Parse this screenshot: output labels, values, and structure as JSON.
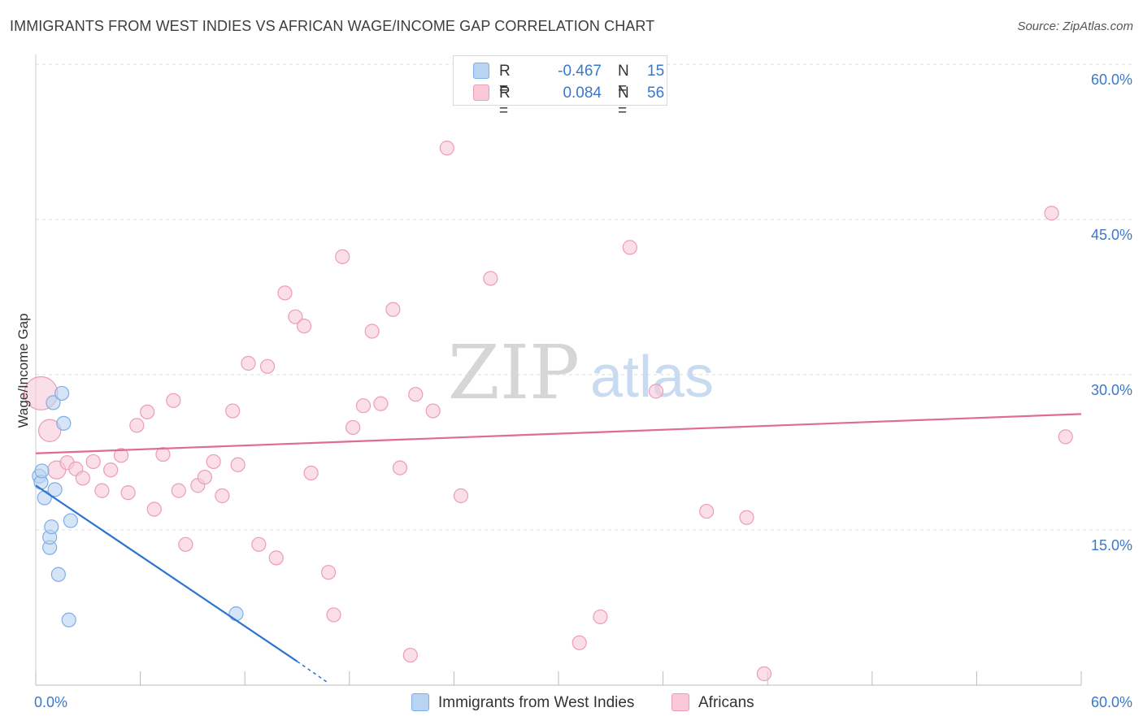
{
  "title": "IMMIGRANTS FROM WEST INDIES VS AFRICAN WAGE/INCOME GAP CORRELATION CHART",
  "source": "Source: ZipAtlas.com",
  "watermark": {
    "zip": "ZIP",
    "atlas": "atlas"
  },
  "legend": {
    "series1": {
      "r_label": "R =",
      "r_value": "-0.467",
      "n_label": "N =",
      "n_value": "15"
    },
    "series2": {
      "r_label": "R =",
      "r_value": "0.084",
      "n_label": "N =",
      "n_value": "56"
    }
  },
  "colors": {
    "blue_fill": "#b9d3f2",
    "blue_stroke": "#7eaee6",
    "blue_line": "#2f73d0",
    "pink_fill": "#f9c9d8",
    "pink_stroke": "#ee9bb6",
    "pink_line": "#e06b95",
    "grid": "#dddddd",
    "axis_text": "#3a78c9"
  },
  "chart_data": {
    "type": "scatter",
    "title": "IMMIGRANTS FROM WEST INDIES VS AFRICAN WAGE/INCOME GAP CORRELATION CHART",
    "xlabel": "",
    "ylabel": "Wage/Income Gap",
    "xlim": [
      0,
      60
    ],
    "ylim": [
      0,
      60
    ],
    "x_tick_labels": [
      "0.0%",
      "60.0%"
    ],
    "y_tick_values": [
      15,
      30,
      45,
      60
    ],
    "y_tick_labels": [
      "15.0%",
      "30.0%",
      "45.0%",
      "60.0%"
    ],
    "series": [
      {
        "name": "Immigrants from West Indies",
        "color": "#b9d3f2",
        "points": [
          [
            0.2,
            20.2,
            1
          ],
          [
            0.3,
            19.6,
            1
          ],
          [
            0.35,
            20.7,
            1
          ],
          [
            0.5,
            18.1,
            1
          ],
          [
            0.8,
            13.3,
            1
          ],
          [
            0.8,
            14.3,
            1
          ],
          [
            0.9,
            15.3,
            1
          ],
          [
            1.0,
            27.3,
            1
          ],
          [
            1.1,
            18.9,
            1
          ],
          [
            1.3,
            10.7,
            1
          ],
          [
            1.5,
            28.2,
            1
          ],
          [
            1.6,
            25.3,
            1
          ],
          [
            1.9,
            6.3,
            1
          ],
          [
            2.0,
            15.9,
            1
          ],
          [
            11.5,
            6.9,
            1
          ]
        ],
        "trend": {
          "x0": 0,
          "y0": 19.3,
          "x1": 15.0,
          "y1": 2.3,
          "dash_to_x": 16.8,
          "dash_to_y": 0.2
        }
      },
      {
        "name": "Africans",
        "color": "#f9c9d8",
        "points": [
          [
            0.3,
            28.2,
            2.4
          ],
          [
            0.8,
            24.6,
            1.6
          ],
          [
            1.2,
            20.8,
            1.3
          ],
          [
            1.8,
            21.5,
            1
          ],
          [
            2.3,
            20.9,
            1
          ],
          [
            2.7,
            20.0,
            1
          ],
          [
            3.3,
            21.6,
            1
          ],
          [
            3.8,
            18.8,
            1
          ],
          [
            4.3,
            20.8,
            1
          ],
          [
            4.9,
            22.2,
            1
          ],
          [
            5.3,
            18.6,
            1
          ],
          [
            5.8,
            25.1,
            1
          ],
          [
            6.4,
            26.4,
            1
          ],
          [
            6.8,
            17.0,
            1
          ],
          [
            7.3,
            22.3,
            1
          ],
          [
            7.9,
            27.5,
            1
          ],
          [
            8.2,
            18.8,
            1
          ],
          [
            8.6,
            13.6,
            1
          ],
          [
            9.3,
            19.3,
            1
          ],
          [
            9.7,
            20.1,
            1
          ],
          [
            10.2,
            21.6,
            1
          ],
          [
            10.7,
            18.3,
            1
          ],
          [
            11.3,
            26.5,
            1
          ],
          [
            11.6,
            21.3,
            1
          ],
          [
            12.2,
            31.1,
            1
          ],
          [
            12.8,
            13.6,
            1
          ],
          [
            13.3,
            30.8,
            1
          ],
          [
            13.8,
            12.3,
            1
          ],
          [
            14.3,
            37.9,
            1
          ],
          [
            14.9,
            35.6,
            1
          ],
          [
            15.4,
            34.7,
            1
          ],
          [
            15.8,
            20.5,
            1
          ],
          [
            16.8,
            10.9,
            1
          ],
          [
            17.1,
            6.8,
            1
          ],
          [
            17.6,
            41.4,
            1
          ],
          [
            18.2,
            24.9,
            1
          ],
          [
            18.8,
            27.0,
            1
          ],
          [
            19.3,
            34.2,
            1
          ],
          [
            19.8,
            27.2,
            1
          ],
          [
            20.5,
            36.3,
            1
          ],
          [
            20.9,
            21.0,
            1
          ],
          [
            21.5,
            2.9,
            1
          ],
          [
            21.8,
            28.1,
            1
          ],
          [
            22.8,
            26.5,
            1
          ],
          [
            23.6,
            51.9,
            1
          ],
          [
            24.4,
            18.3,
            1
          ],
          [
            26.1,
            39.3,
            1
          ],
          [
            31.2,
            4.1,
            1
          ],
          [
            32.4,
            6.6,
            1
          ],
          [
            34.1,
            42.3,
            1
          ],
          [
            35.6,
            28.4,
            1
          ],
          [
            38.5,
            16.8,
            1
          ],
          [
            40.8,
            16.2,
            1
          ],
          [
            41.8,
            1.1,
            1
          ],
          [
            58.3,
            45.6,
            1
          ],
          [
            59.1,
            24.0,
            1
          ]
        ],
        "trend": {
          "x0": 0,
          "y0": 22.4,
          "x1": 60,
          "y1": 26.2
        }
      }
    ]
  }
}
